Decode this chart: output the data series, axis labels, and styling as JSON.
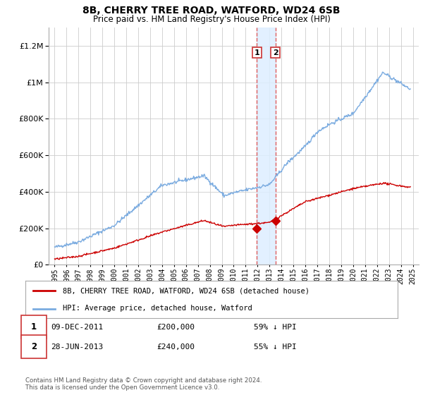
{
  "title": "8B, CHERRY TREE ROAD, WATFORD, WD24 6SB",
  "subtitle": "Price paid vs. HM Land Registry's House Price Index (HPI)",
  "legend_red": "8B, CHERRY TREE ROAD, WATFORD, WD24 6SB (detached house)",
  "legend_blue": "HPI: Average price, detached house, Watford",
  "transaction1_label": "1",
  "transaction1_date": "09-DEC-2011",
  "transaction1_price": "£200,000",
  "transaction1_hpi": "59% ↓ HPI",
  "transaction1_year": 2011.93,
  "transaction1_value": 200000,
  "transaction2_label": "2",
  "transaction2_date": "28-JUN-2013",
  "transaction2_price": "£240,000",
  "transaction2_hpi": "55% ↓ HPI",
  "transaction2_year": 2013.49,
  "transaction2_value": 240000,
  "red_color": "#cc0000",
  "blue_color": "#7aabe0",
  "vline_color": "#e06060",
  "vspan_color": "#ddeeff",
  "background_color": "#ffffff",
  "ylim": [
    0,
    1300000
  ],
  "xlim_start": 1994.5,
  "xlim_end": 2025.5,
  "footer": "Contains HM Land Registry data © Crown copyright and database right 2024.\nThis data is licensed under the Open Government Licence v3.0."
}
